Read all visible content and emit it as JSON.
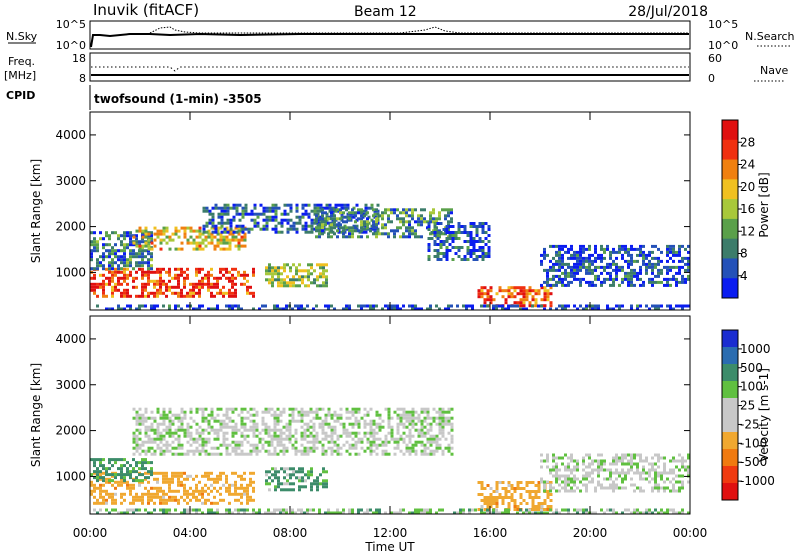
{
  "header": {
    "station": "Inuvik (fitACF)",
    "beam": "Beam 12",
    "date": "28/Jul/2018"
  },
  "top_panels": {
    "nsky_label": "N.Sky",
    "nsky_ticks": [
      "10^5",
      "10^0"
    ],
    "nsearch_label": "N.Search",
    "nsearch_ticks": [
      "10^5",
      "10^0"
    ],
    "freq_label": "Freq.",
    "freq_unit": "[MHz]",
    "freq_ticks": [
      "18",
      "8"
    ],
    "nave_label": "Nave",
    "nave_ticks": [
      "60",
      "0"
    ],
    "cpid_label": "CPID",
    "cpid_value": "twofsound (1-min) -3505"
  },
  "colors": {
    "power_scale": [
      "#0a1cf0",
      "#2451b8",
      "#3c7c6a",
      "#5aa04a",
      "#a8c83a",
      "#f0c020",
      "#f08010",
      "#f03010",
      "#e01010"
    ],
    "velocity_scale": [
      "#e01010",
      "#f03a10",
      "#f07a10",
      "#f0a830",
      "#c8c8c8",
      "#c8c8c8",
      "#60c040",
      "#3c8c6a",
      "#2a6cb0",
      "#1a2cd0"
    ],
    "gray_scatter": "#c8c8c8"
  },
  "chart_data": [
    {
      "type": "heatmap",
      "name": "power",
      "ylabel": "Slant Range [km]",
      "yticks": [
        1000,
        2000,
        3000,
        4000
      ],
      "ylim": [
        180,
        4500
      ],
      "xlim": [
        0,
        24
      ],
      "colorbar_label": "Power [dB]",
      "colorbar_ticks": [
        "28",
        "24",
        "20",
        "16",
        "12",
        "8",
        "4"
      ],
      "regions": [
        {
          "t": [
            0.0,
            6.5
          ],
          "r": [
            500,
            1100
          ],
          "v": 26
        },
        {
          "t": [
            0.0,
            2.5
          ],
          "r": [
            1100,
            1900
          ],
          "v": 8
        },
        {
          "t": [
            1.7,
            6.2
          ],
          "r": [
            1500,
            2000
          ],
          "v": 18
        },
        {
          "t": [
            4.5,
            11.5
          ],
          "r": [
            1900,
            2500
          ],
          "v": 6
        },
        {
          "t": [
            9.0,
            14.5
          ],
          "r": [
            1800,
            2400
          ],
          "v": 10
        },
        {
          "t": [
            13.5,
            16.0
          ],
          "r": [
            1300,
            2100
          ],
          "v": 5
        },
        {
          "t": [
            15.5,
            18.5
          ],
          "r": [
            250,
            700
          ],
          "v": 26
        },
        {
          "t": [
            18.0,
            24.0
          ],
          "r": [
            700,
            1600
          ],
          "v": 5
        },
        {
          "t": [
            7.0,
            9.5
          ],
          "r": [
            700,
            1200
          ],
          "v": 14
        },
        {
          "t": [
            0.0,
            24.0
          ],
          "r": [
            200,
            300
          ],
          "v": 4
        }
      ]
    },
    {
      "type": "heatmap",
      "name": "velocity",
      "ylabel": "Slant Range [km]",
      "yticks": [
        1000,
        2000,
        3000,
        4000
      ],
      "ylim": [
        180,
        4500
      ],
      "xlim": [
        0,
        24
      ],
      "xticks": [
        "00:00",
        "04:00",
        "08:00",
        "12:00",
        "16:00",
        "20:00",
        "00:00"
      ],
      "xlabel": "Time UT",
      "colorbar_label": "Velocity [m s-1]",
      "colorbar_ticks": [
        "1000",
        "500",
        "100",
        "25",
        "-25",
        "-100",
        "-500",
        "-1000"
      ],
      "regions": [
        {
          "t": [
            0.0,
            6.5
          ],
          "r": [
            400,
            1100
          ],
          "v": -300
        },
        {
          "t": [
            0.0,
            2.5
          ],
          "r": [
            900,
            1400
          ],
          "v": 200
        },
        {
          "t": [
            1.7,
            14.5
          ],
          "r": [
            1500,
            2500
          ],
          "v": 0
        },
        {
          "t": [
            7.0,
            9.5
          ],
          "r": [
            700,
            1200
          ],
          "v": 150
        },
        {
          "t": [
            15.5,
            18.5
          ],
          "r": [
            250,
            900
          ],
          "v": -300
        },
        {
          "t": [
            18.0,
            24.0
          ],
          "r": [
            700,
            1500
          ],
          "v": 0
        },
        {
          "t": [
            0.0,
            24.0
          ],
          "r": [
            200,
            300
          ],
          "v": 40
        }
      ]
    }
  ]
}
